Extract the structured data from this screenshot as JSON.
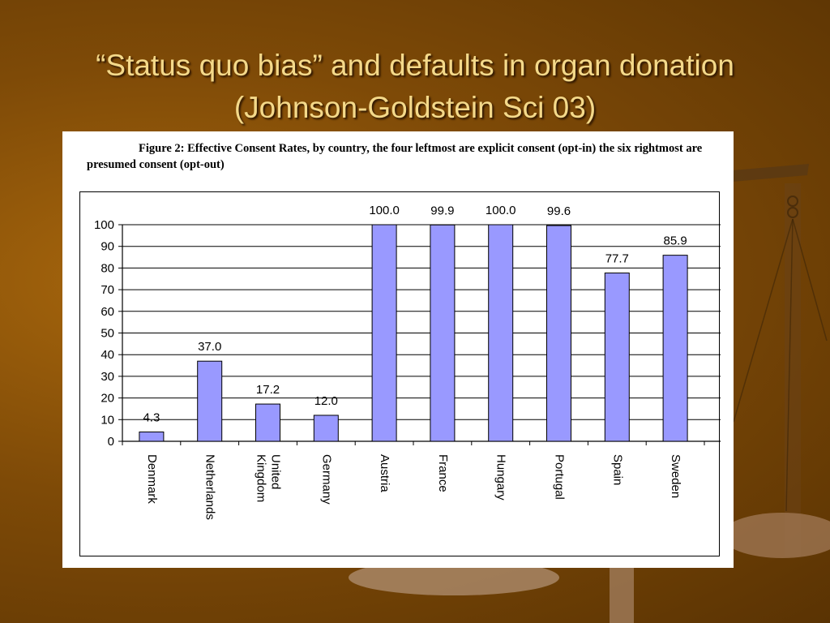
{
  "slide": {
    "title": "“Status quo bias” and defaults in organ donation (Johnson-Goldstein Sci 03)"
  },
  "figure": {
    "caption": "Figure 2: Effective Consent Rates, by country, the four leftmost are explicit consent (opt-in) the six rightmost are presumed consent (opt-out)"
  },
  "colors": {
    "bar_fill": "#9999ff",
    "bar_stroke": "#000000",
    "background": "#7e4a07",
    "title_text": "#f4d98a"
  },
  "chart_data": {
    "type": "bar",
    "categories": [
      "Denmark",
      "Netherlands",
      "United Kingdom",
      "Germany",
      "Austria",
      "France",
      "Hungary",
      "Portugal",
      "Spain",
      "Sweden"
    ],
    "values": [
      4.3,
      37.0,
      17.2,
      12.0,
      100.0,
      99.9,
      100.0,
      99.6,
      77.7,
      85.9
    ],
    "data_labels": [
      "4.3",
      "37.0",
      "17.2",
      "12.0",
      "100.0",
      "99.9",
      "100.0",
      "99.6",
      "77.7",
      "85.9"
    ],
    "category_labels": [
      [
        "Denmark"
      ],
      [
        "Netherlands"
      ],
      [
        "United",
        "Kingdom"
      ],
      [
        "Germany"
      ],
      [
        "Austria"
      ],
      [
        "France"
      ],
      [
        "Hungary"
      ],
      [
        "Portugal"
      ],
      [
        "Spain"
      ],
      [
        "Sweden"
      ]
    ],
    "y_ticks": [
      0,
      10,
      20,
      30,
      40,
      50,
      60,
      70,
      80,
      90,
      100
    ],
    "ylim": [
      0,
      100
    ],
    "grid": true,
    "legend": "none",
    "title": "",
    "xlabel": "",
    "ylabel": ""
  }
}
